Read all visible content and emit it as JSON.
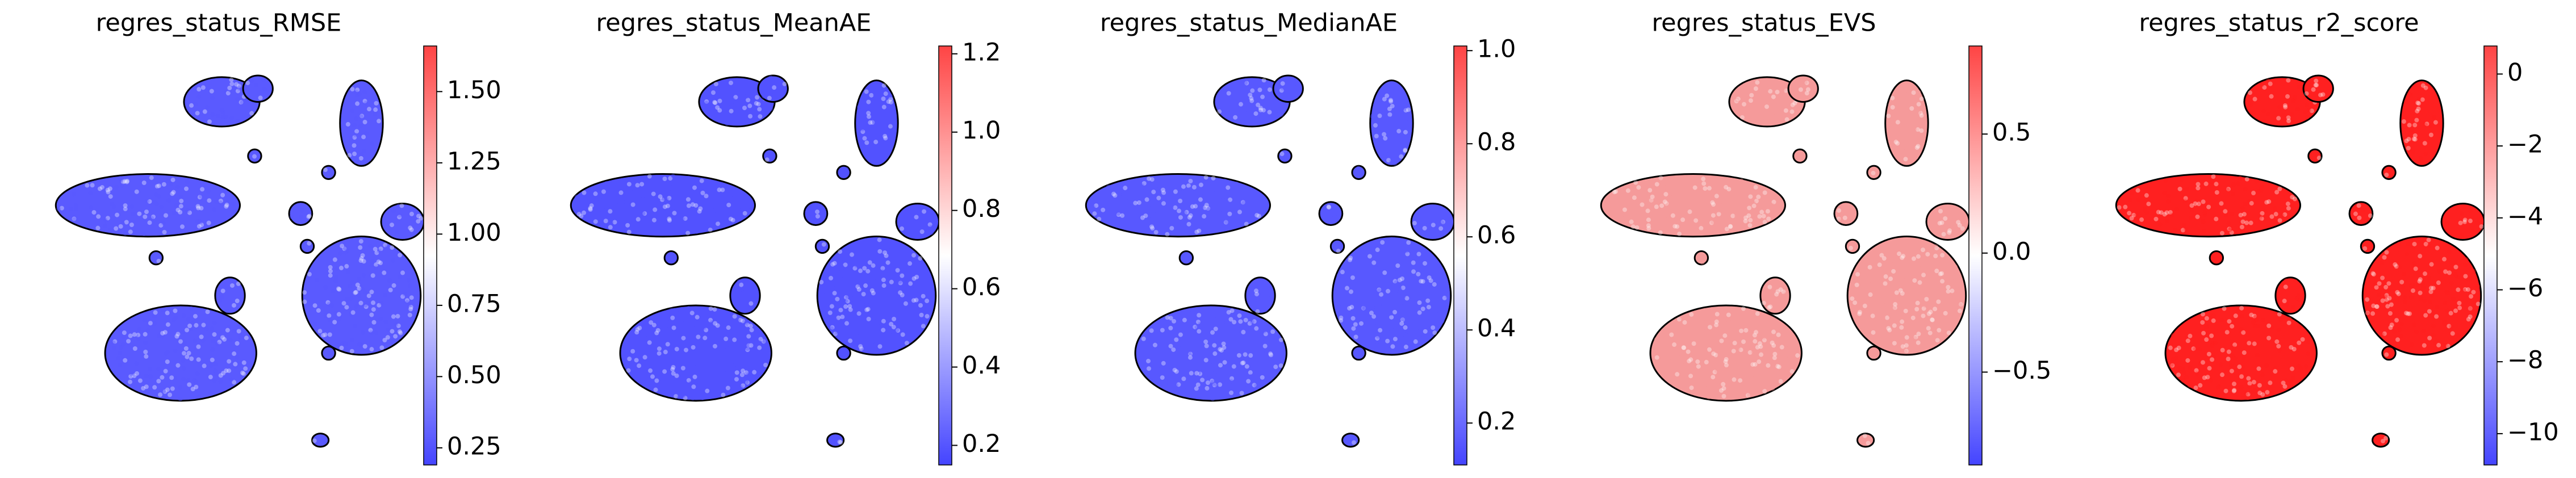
{
  "chart_data": [
    {
      "type": "scatter",
      "title": "regres_status_RMSE",
      "cmap": [
        "#4444ff",
        "#ffffff",
        "#ff4444"
      ],
      "point_color": "#5a5aff",
      "clim": [
        0.19,
        1.66
      ],
      "cticks": [
        0.25,
        {
          "value": 0.5,
          "label": "0.50"
        },
        0.75,
        {
          "value": 1,
          "label": "1.00"
        },
        1.25,
        {
          "value": 1.5,
          "label": "1.50"
        }
      ]
    },
    {
      "type": "scatter",
      "title": "regres_status_MeanAE",
      "cmap": [
        "#4444ff",
        "#ffffff",
        "#ff4444"
      ],
      "point_color": "#5252ff",
      "clim": [
        0.15,
        1.22
      ],
      "cticks": [
        0.2,
        0.4,
        0.6,
        0.8,
        {
          "value": 1,
          "label": "1.0"
        },
        1.2
      ]
    },
    {
      "type": "scatter",
      "title": "regres_status_MedianAE",
      "cmap": [
        "#4444ff",
        "#ffffff",
        "#ff4444"
      ],
      "point_color": "#5858ff",
      "clim": [
        0.11,
        1.01
      ],
      "cticks": [
        0.2,
        0.4,
        0.6,
        0.8,
        {
          "value": 1,
          "label": "1.0"
        }
      ]
    },
    {
      "type": "scatter",
      "title": "regres_status_EVS",
      "cmap": [
        "#4444ff",
        "#ffffff",
        "#ff4444"
      ],
      "point_color": "#f59a9a",
      "clim": [
        -0.89,
        0.87
      ],
      "cticks": [
        {
          "value": -0.5,
          "label": "−0.5"
        },
        {
          "value": 0,
          "label": "0.0"
        },
        0.5
      ]
    },
    {
      "type": "scatter",
      "title": "regres_status_r2_score",
      "cmap": [
        "#4444ff",
        "#ffffff",
        "#ff4444"
      ],
      "point_color": "#ff2020",
      "clim": [
        -10.87,
        0.78
      ],
      "cticks": [
        {
          "value": -10,
          "label": "−10"
        },
        {
          "value": -8,
          "label": "−8"
        },
        {
          "value": -6,
          "label": "−6"
        },
        {
          "value": -4,
          "label": "−4"
        },
        {
          "value": -2,
          "label": "−2"
        },
        0
      ]
    }
  ]
}
